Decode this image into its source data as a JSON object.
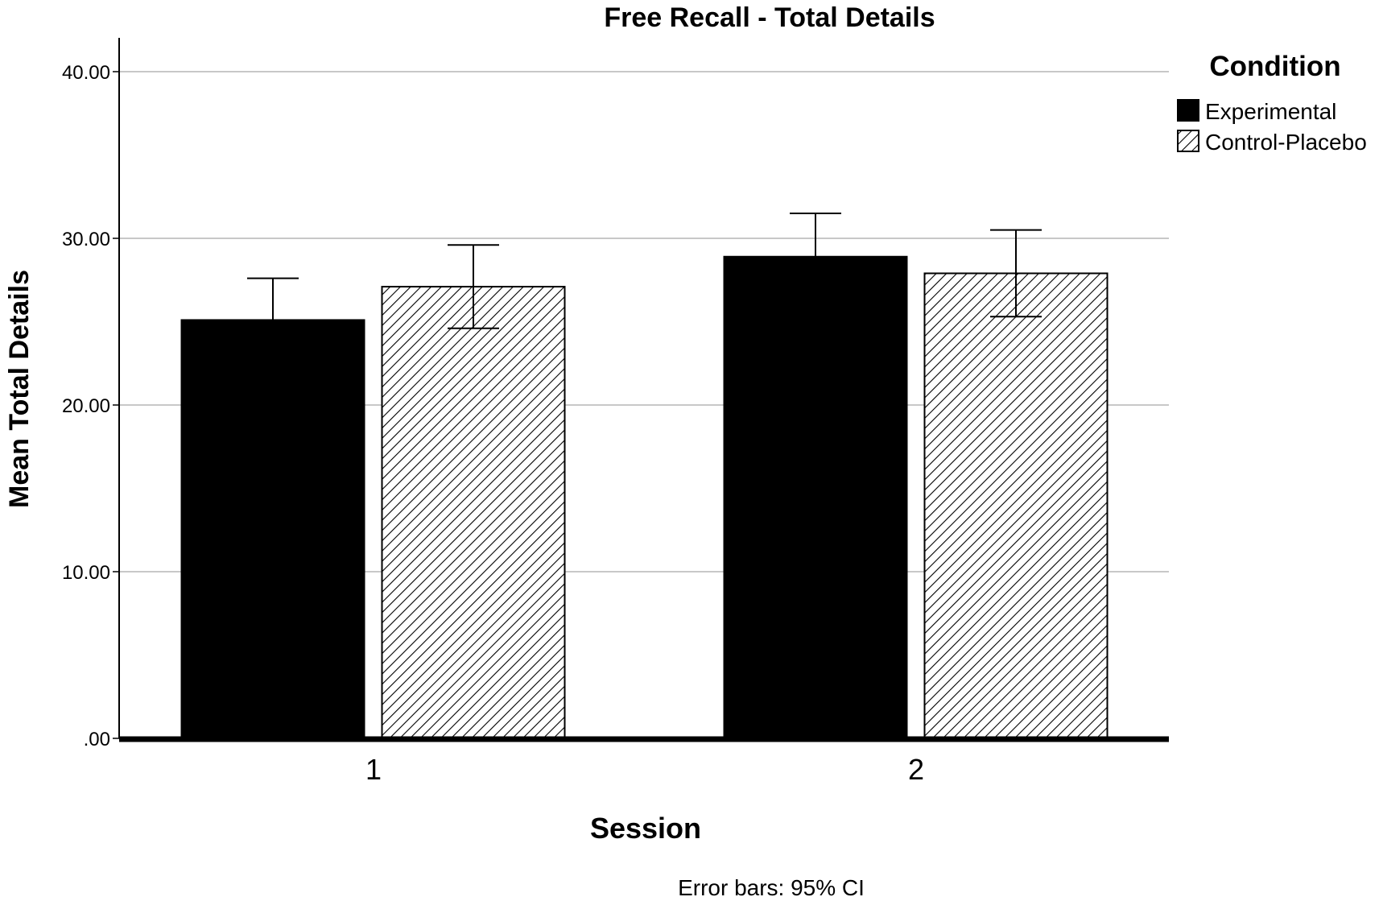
{
  "chart_data": {
    "type": "bar",
    "title": "Free Recall - Total Details",
    "xlabel": "Session",
    "ylabel": "Mean Total Details",
    "categories": [
      "1",
      "2"
    ],
    "series": [
      {
        "name": "Experimental",
        "fill": "solid",
        "color": "#000000",
        "values": [
          25.1,
          28.9
        ],
        "ci_lower": [
          22.7,
          26.2
        ],
        "ci_upper": [
          27.6,
          31.5
        ]
      },
      {
        "name": "Control-Placebo",
        "fill": "diagonal-hatch",
        "color": "#000000",
        "values": [
          27.1,
          27.9
        ],
        "ci_lower": [
          24.6,
          25.3
        ],
        "ci_upper": [
          29.6,
          30.5
        ]
      }
    ],
    "ylim": [
      0,
      42
    ],
    "yticks": [
      0,
      10,
      20,
      30,
      40
    ],
    "ytick_labels": [
      ".00",
      "10.00",
      "20.00",
      "30.00",
      "40.00"
    ],
    "grid": true,
    "grid_color": "#c8c8c8",
    "legend": {
      "title": "Condition",
      "position": "top-right"
    },
    "footnote": "Error bars: 95% CI"
  }
}
